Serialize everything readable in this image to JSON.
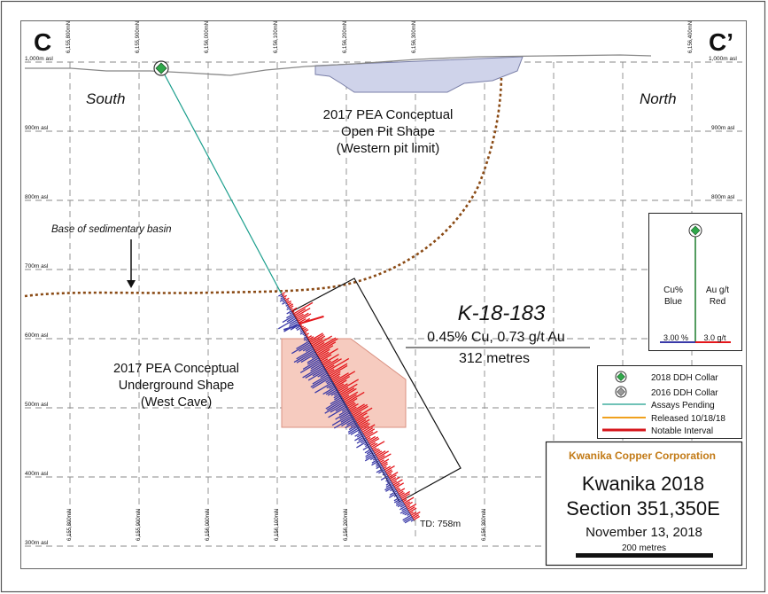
{
  "section": {
    "left_label": "C",
    "right_label": "C’"
  },
  "directions": {
    "south": "South",
    "north": "North"
  },
  "elevations": [
    "1,000m asl",
    "900m asl",
    "800m asl",
    "700m asl",
    "600m asl",
    "500m asl",
    "400m asl",
    "300m asl"
  ],
  "northings_top": [
    "6,155,800mN",
    "6,155,900mN",
    "6,156,000mN",
    "6,156,100mN",
    "6,156,200mN",
    "6,156,300mN",
    "6,156,400mN"
  ],
  "northings_bottom": [
    "6,155,800mN",
    "6,155,900mN",
    "6,156,000mN",
    "6,156,100mN",
    "6,156,200mN",
    "6,156,300mN",
    "6,156,400mN"
  ],
  "open_pit": {
    "line1": "2017 PEA Conceptual",
    "line2": "Open Pit Shape",
    "line3": "(Western pit limit)"
  },
  "underground": {
    "line1": "2017 PEA Conceptual",
    "line2": "Underground Shape",
    "line3": "(West Cave)"
  },
  "basin_label": "Base of sedimentary basin",
  "hole": {
    "id": "K-18-183",
    "grade": "0.45% Cu, 0.73 g/t Au",
    "length": "312 metres",
    "td": "TD: 758m"
  },
  "scale_inset": {
    "cu_label": "Cu%",
    "cu_color_label": "Blue",
    "au_label": "Au g/t",
    "au_color_label": "Red",
    "cu_scale": "3.00 %",
    "au_scale": "3.0 g/t"
  },
  "legend": {
    "items": [
      "2018 DDH Collar",
      "2016 DDH Collar",
      "Assays Pending",
      "Released 10/18/18",
      "Notable Interval"
    ]
  },
  "title_block": {
    "company": "Kwanika Copper Corporation",
    "project": "Kwanika 2018",
    "section": "Section 351,350E",
    "date": "November 13, 2018",
    "scale": "200 metres"
  },
  "colors": {
    "copper_bar": "#3a3aa8",
    "gold_bar": "#e3161b",
    "assays_pending": "#1a9e8c",
    "released": "#f0a11e",
    "notable": "#d6161b",
    "company_text": "#c27a16",
    "pit_fill": "#cfd3ea",
    "underground_fill": "#f6cbbf",
    "basin_line": "#8a4a14"
  }
}
